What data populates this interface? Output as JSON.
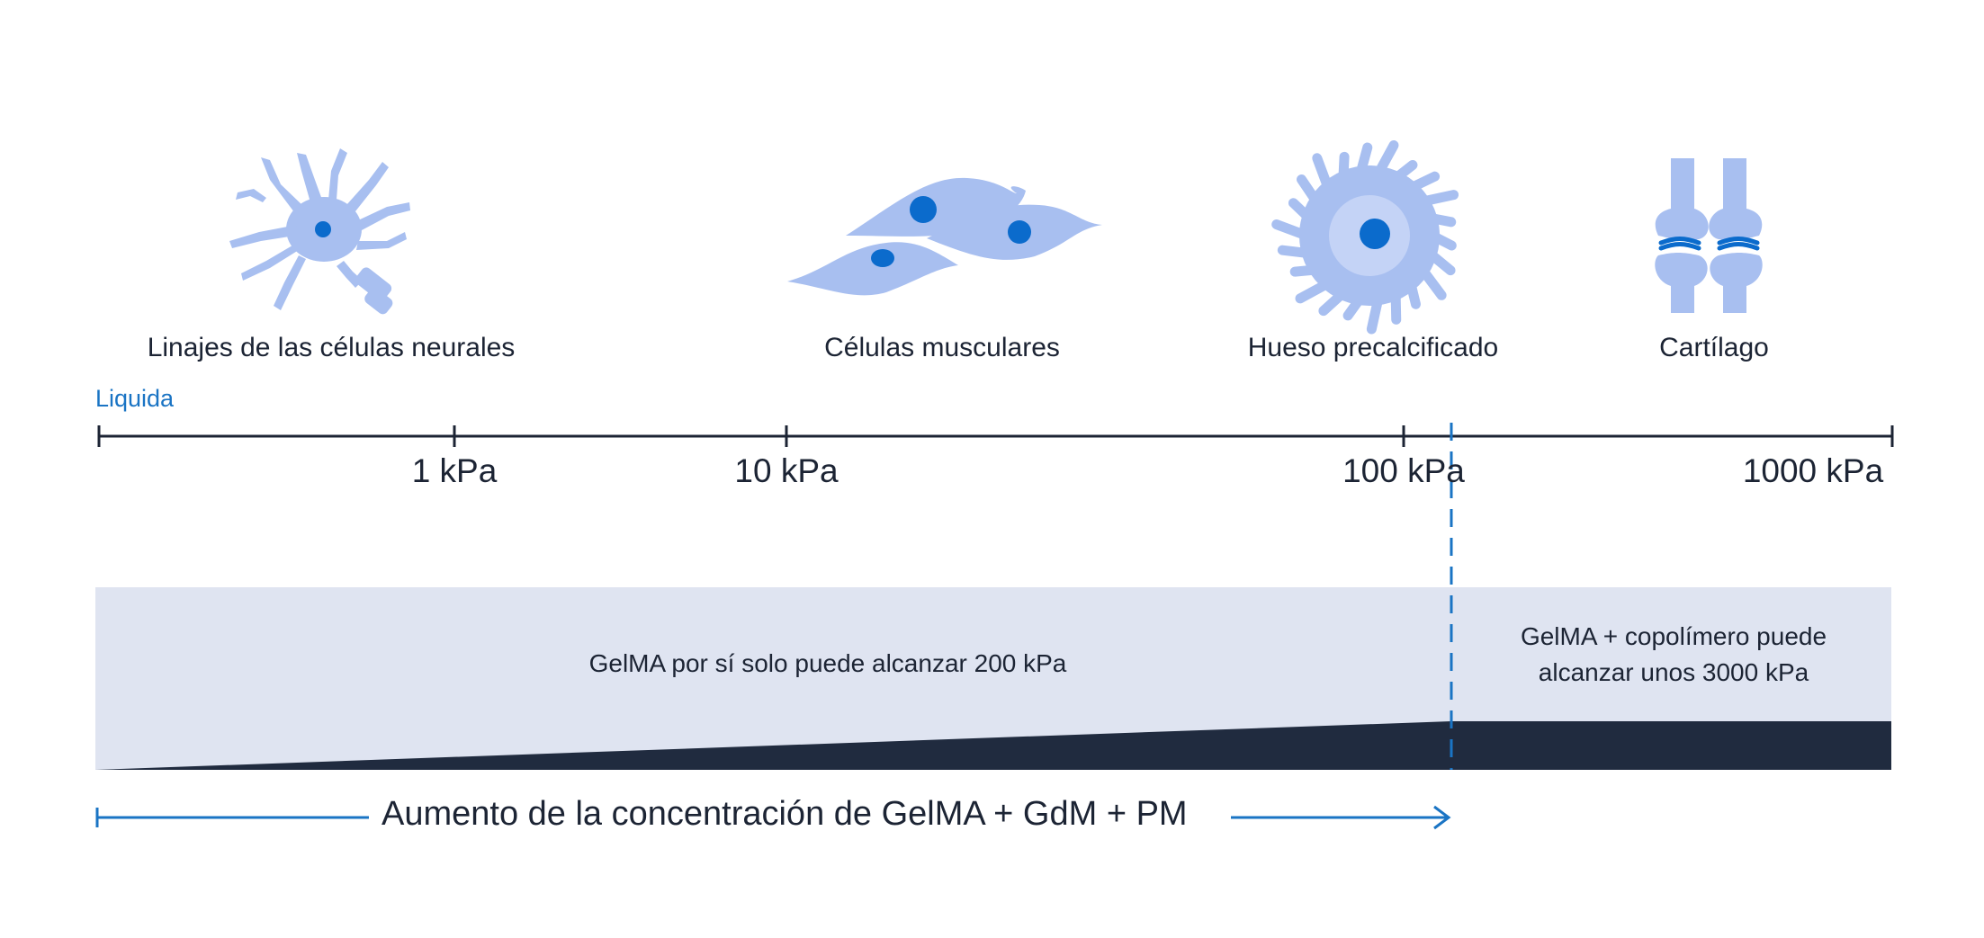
{
  "colors": {
    "cell_fill": "#a8bff0",
    "cell_nucleus": "#0b6bcc",
    "axis": "#1c2434",
    "accent": "#1a74c4",
    "band_light": "#dfe4f1",
    "band_dark": "#202b3f"
  },
  "cells": [
    {
      "icon": "neuron-icon",
      "label": "Linajes de las células neurales"
    },
    {
      "icon": "muscle-cells-icon",
      "label": "Células musculares"
    },
    {
      "icon": "bone-cell-icon",
      "label": "Hueso precalcificado"
    },
    {
      "icon": "cartilage-joint-icon",
      "label": "Cartílago"
    }
  ],
  "axis": {
    "start_label": "Liquida",
    "ticks": [
      {
        "label": "1 kPa"
      },
      {
        "label": "10 kPa"
      },
      {
        "label": "100 kPa"
      },
      {
        "label": "1000 kPa"
      }
    ]
  },
  "band": {
    "left_text": "GelMA por sí solo puede alcanzar 200 kPa",
    "right_text_line1": "GelMA + copolímero puede",
    "right_text_line2": "alcanzar unos 3000 kPa"
  },
  "arrow": {
    "label": "Aumento de la concentración de GelMA + GdM + PM"
  }
}
